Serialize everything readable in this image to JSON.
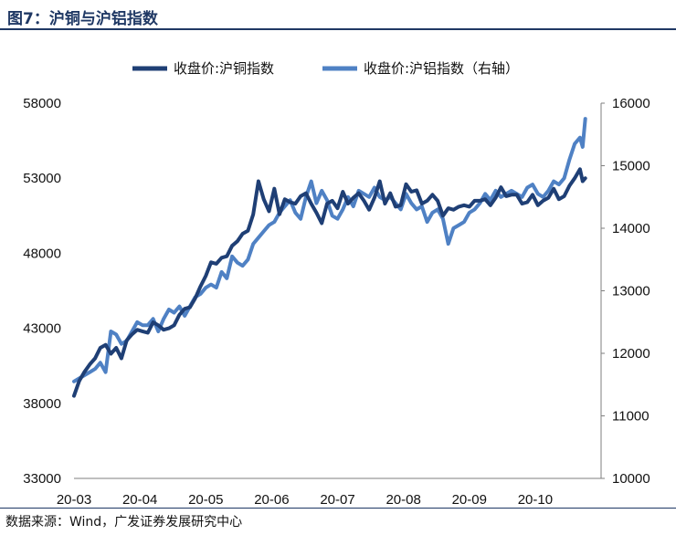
{
  "header": {
    "title": "图7：沪铜与沪铝指数"
  },
  "footer": {
    "source": "数据来源：Wind，广发证券发展研究中心"
  },
  "colors": {
    "copper": "#1f3f75",
    "aluminum": "#4f81c4",
    "title": "#1f3864",
    "axis": "#7f7f7f"
  },
  "chart_data": {
    "type": "line",
    "title": "",
    "legend_position": "top",
    "x_ticks": [
      "20-03",
      "20-04",
      "20-05",
      "20-06",
      "20-07",
      "20-08",
      "20-09",
      "20-10"
    ],
    "y_left": {
      "min": 33000,
      "max": 58000,
      "ticks": [
        33000,
        38000,
        43000,
        48000,
        53000,
        58000
      ]
    },
    "y_right": {
      "min": 10000,
      "max": 16000,
      "ticks": [
        10000,
        11000,
        12000,
        13000,
        14000,
        15000,
        16000
      ]
    },
    "series": [
      {
        "name": "收盘价:沪铜指数",
        "axis": "left",
        "x": [
          0,
          0.08,
          0.16,
          0.24,
          0.32,
          0.4,
          0.48,
          0.56,
          0.64,
          0.72,
          0.8,
          0.88,
          0.96,
          1.04,
          1.12,
          1.2,
          1.28,
          1.36,
          1.44,
          1.52,
          1.6,
          1.68,
          1.76,
          1.84,
          1.92,
          2.0,
          2.08,
          2.16,
          2.24,
          2.32,
          2.4,
          2.48,
          2.56,
          2.64,
          2.72,
          2.8,
          2.88,
          2.96,
          3.04,
          3.12,
          3.2,
          3.28,
          3.36,
          3.44,
          3.52,
          3.6,
          3.68,
          3.76,
          3.84,
          3.92,
          4.0,
          4.08,
          4.16,
          4.24,
          4.32,
          4.4,
          4.48,
          4.56,
          4.64,
          4.72,
          4.8,
          4.88,
          4.96,
          5.04,
          5.12,
          5.2,
          5.28,
          5.36,
          5.44,
          5.52,
          5.6,
          5.68,
          5.76,
          5.84,
          5.92,
          6.0,
          6.08,
          6.16,
          6.24,
          6.32,
          6.4,
          6.48,
          6.56,
          6.64,
          6.72,
          6.8,
          6.88,
          6.96,
          7.04,
          7.12,
          7.2,
          7.28,
          7.36,
          7.44,
          7.52,
          7.6,
          7.68,
          7.72,
          7.76
        ],
        "values": [
          38500,
          39500,
          40100,
          40600,
          41000,
          41700,
          41900,
          41300,
          41700,
          41000,
          42200,
          42600,
          42900,
          42800,
          42700,
          43400,
          43200,
          42900,
          43000,
          43200,
          43900,
          44300,
          44400,
          45000,
          45800,
          46500,
          47400,
          47300,
          47700,
          47800,
          48500,
          48800,
          49300,
          49500,
          50600,
          52800,
          51600,
          50800,
          52300,
          50600,
          51600,
          51400,
          51300,
          51800,
          52000,
          51300,
          50700,
          50000,
          51300,
          51500,
          51000,
          52100,
          51300,
          51700,
          52000,
          51500,
          50900,
          51700,
          52800,
          51300,
          52000,
          51100,
          51200,
          52600,
          52100,
          52200,
          51300,
          51500,
          51900,
          51500,
          50500,
          51000,
          50900,
          51100,
          51200,
          51100,
          51500,
          51500,
          51600,
          51200,
          51700,
          52400,
          51800,
          51900,
          51900,
          51300,
          51400,
          51900,
          51200,
          51500,
          51700,
          52300,
          51600,
          51800,
          52500,
          53000,
          53600,
          52800,
          53000
        ]
      },
      {
        "name": "收盘价:沪铝指数（右轴）",
        "axis": "right",
        "x": [
          0,
          0.08,
          0.16,
          0.24,
          0.32,
          0.4,
          0.48,
          0.56,
          0.64,
          0.72,
          0.8,
          0.88,
          0.96,
          1.04,
          1.12,
          1.2,
          1.28,
          1.36,
          1.44,
          1.52,
          1.6,
          1.68,
          1.76,
          1.84,
          1.92,
          2.0,
          2.08,
          2.16,
          2.24,
          2.32,
          2.4,
          2.48,
          2.56,
          2.64,
          2.72,
          2.8,
          2.88,
          2.96,
          3.04,
          3.12,
          3.2,
          3.28,
          3.36,
          3.44,
          3.52,
          3.6,
          3.68,
          3.76,
          3.84,
          3.92,
          4.0,
          4.08,
          4.16,
          4.24,
          4.32,
          4.4,
          4.48,
          4.56,
          4.64,
          4.72,
          4.8,
          4.88,
          4.96,
          5.04,
          5.12,
          5.2,
          5.28,
          5.36,
          5.44,
          5.52,
          5.6,
          5.68,
          5.76,
          5.84,
          5.92,
          6.0,
          6.08,
          6.16,
          6.24,
          6.32,
          6.4,
          6.48,
          6.56,
          6.64,
          6.72,
          6.8,
          6.88,
          6.96,
          7.04,
          7.12,
          7.2,
          7.28,
          7.36,
          7.44,
          7.52,
          7.6,
          7.68,
          7.72,
          7.76
        ],
        "values": [
          11550,
          11600,
          11650,
          11700,
          11750,
          11850,
          11700,
          12350,
          12300,
          12150,
          12200,
          12350,
          12500,
          12450,
          12450,
          12550,
          12350,
          12550,
          12700,
          12650,
          12750,
          12600,
          12750,
          12900,
          12950,
          13050,
          13100,
          13050,
          13300,
          13200,
          13550,
          13450,
          13400,
          13500,
          13750,
          13850,
          13950,
          14050,
          14100,
          14250,
          14350,
          14450,
          14250,
          14150,
          14500,
          14750,
          14400,
          14600,
          14450,
          14200,
          14150,
          14300,
          14500,
          14350,
          14600,
          14550,
          14500,
          14650,
          14500,
          14450,
          14500,
          14400,
          14300,
          14550,
          14400,
          14300,
          14350,
          14100,
          14250,
          14300,
          14150,
          13750,
          14000,
          14050,
          14100,
          14250,
          14300,
          14400,
          14550,
          14450,
          14600,
          14500,
          14550,
          14600,
          14550,
          14500,
          14650,
          14700,
          14550,
          14500,
          14600,
          14750,
          14700,
          14800,
          15100,
          15350,
          15450,
          15300,
          15750
        ]
      }
    ]
  }
}
